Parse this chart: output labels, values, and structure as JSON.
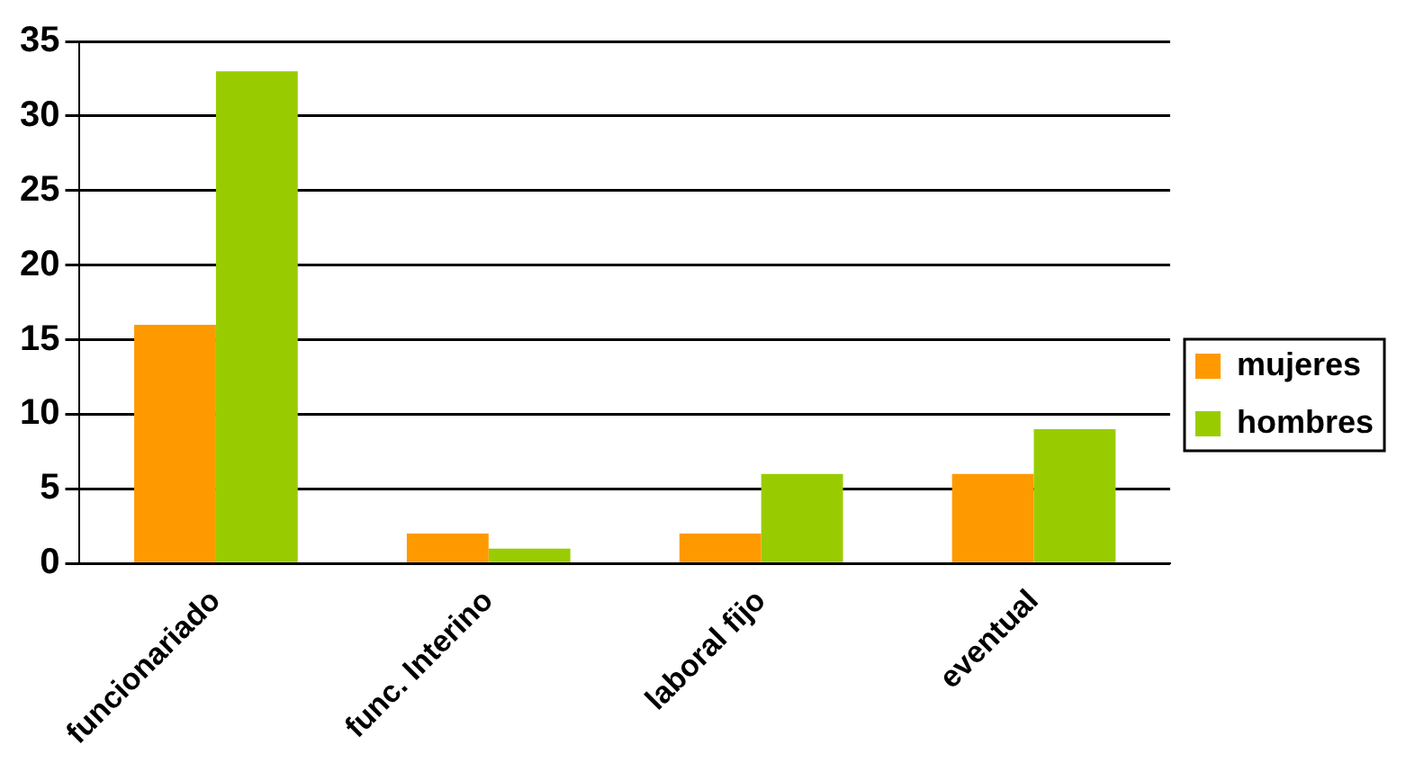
{
  "chart_data": {
    "type": "bar",
    "categories": [
      "funcionariado",
      "func. Interino",
      "laboral fijo",
      "eventual"
    ],
    "series": [
      {
        "name": "mujeres",
        "color": "#ff9900",
        "values": [
          16,
          2,
          2,
          6
        ]
      },
      {
        "name": "hombres",
        "color": "#99cc00",
        "values": [
          33,
          1,
          6,
          9
        ]
      }
    ],
    "ylim": [
      0,
      35
    ],
    "yticks": [
      0,
      5,
      10,
      15,
      20,
      25,
      30,
      35
    ],
    "grid": "y",
    "legend": "right"
  }
}
